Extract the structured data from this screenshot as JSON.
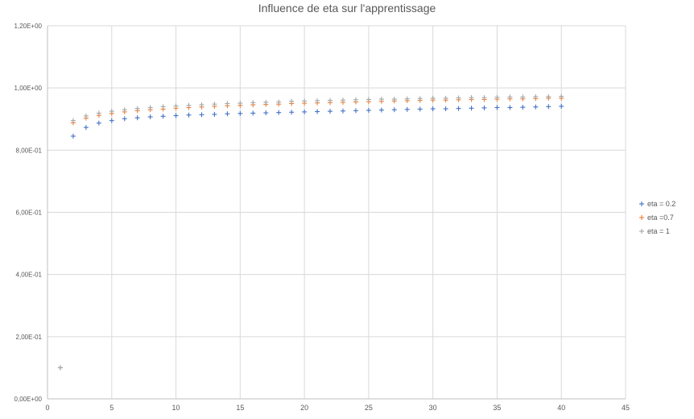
{
  "chart_data": {
    "type": "scatter",
    "title": "Influence de eta sur l'apprentissage",
    "xlabel": "",
    "ylabel": "",
    "xlim": [
      0,
      45
    ],
    "ylim": [
      0,
      1.2
    ],
    "x_ticks": [
      0,
      5,
      10,
      15,
      20,
      25,
      30,
      35,
      40,
      45
    ],
    "x_tick_labels": [
      "0",
      "5",
      "10",
      "15",
      "20",
      "25",
      "30",
      "35",
      "40",
      "45"
    ],
    "y_ticks": [
      0,
      0.2,
      0.4,
      0.6,
      0.8,
      1.0,
      1.2
    ],
    "y_tick_labels": [
      "0,00E+00",
      "2,00E-01",
      "4,00E-01",
      "6,00E-01",
      "8,00E-01",
      "1,00E+00",
      "1,20E+00"
    ],
    "grid": true,
    "legend_position": "right",
    "marker": "+",
    "series": [
      {
        "name": "eta = 0.2",
        "color": "#4472C4",
        "x": [
          1,
          2,
          3,
          4,
          5,
          6,
          7,
          8,
          9,
          10,
          11,
          12,
          13,
          14,
          15,
          16,
          17,
          18,
          19,
          20,
          21,
          22,
          23,
          24,
          25,
          26,
          27,
          28,
          29,
          30,
          31,
          32,
          33,
          34,
          35,
          36,
          37,
          38,
          39,
          40
        ],
        "y": [
          0.1,
          0.845,
          0.873,
          0.887,
          0.895,
          0.901,
          0.904,
          0.907,
          0.909,
          0.911,
          0.913,
          0.914,
          0.915,
          0.917,
          0.918,
          0.919,
          0.92,
          0.921,
          0.922,
          0.923,
          0.924,
          0.925,
          0.926,
          0.927,
          0.928,
          0.929,
          0.93,
          0.931,
          0.932,
          0.933,
          0.933,
          0.934,
          0.935,
          0.936,
          0.937,
          0.937,
          0.938,
          0.939,
          0.94,
          0.941
        ]
      },
      {
        "name": "eta =0.7",
        "color": "#ED7D31",
        "x": [
          1,
          2,
          3,
          4,
          5,
          6,
          7,
          8,
          9,
          10,
          11,
          12,
          13,
          14,
          15,
          16,
          17,
          18,
          19,
          20,
          21,
          22,
          23,
          24,
          25,
          26,
          27,
          28,
          29,
          30,
          31,
          32,
          33,
          34,
          35,
          36,
          37,
          38,
          39,
          40
        ],
        "y": [
          0.1,
          0.888,
          0.903,
          0.912,
          0.918,
          0.923,
          0.927,
          0.93,
          0.932,
          0.935,
          0.937,
          0.939,
          0.941,
          0.943,
          0.944,
          0.946,
          0.947,
          0.948,
          0.95,
          0.951,
          0.952,
          0.953,
          0.954,
          0.955,
          0.956,
          0.957,
          0.958,
          0.959,
          0.96,
          0.961,
          0.961,
          0.962,
          0.963,
          0.963,
          0.964,
          0.965,
          0.965,
          0.966,
          0.967,
          0.967
        ]
      },
      {
        "name": "eta = 1",
        "color": "#A5A5A5",
        "x": [
          1,
          2,
          3,
          4,
          5,
          6,
          7,
          8,
          9,
          10,
          11,
          12,
          13,
          14,
          15,
          16,
          17,
          18,
          19,
          20,
          21,
          22,
          23,
          24,
          25,
          26,
          27,
          28,
          29,
          30,
          31,
          32,
          33,
          34,
          35,
          36,
          37,
          38,
          39,
          40
        ],
        "y": [
          0.1,
          0.895,
          0.91,
          0.919,
          0.925,
          0.93,
          0.934,
          0.937,
          0.94,
          0.942,
          0.944,
          0.946,
          0.948,
          0.95,
          0.951,
          0.953,
          0.954,
          0.955,
          0.957,
          0.958,
          0.959,
          0.96,
          0.961,
          0.962,
          0.963,
          0.964,
          0.964,
          0.965,
          0.966,
          0.967,
          0.967,
          0.968,
          0.969,
          0.969,
          0.97,
          0.971,
          0.971,
          0.972,
          0.972,
          0.973
        ]
      }
    ]
  }
}
